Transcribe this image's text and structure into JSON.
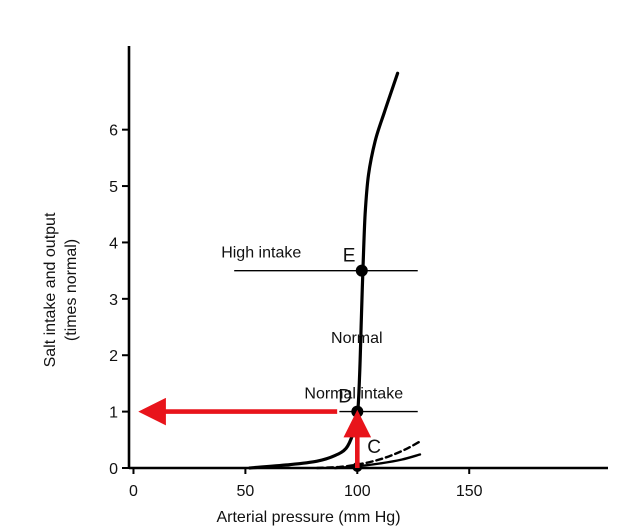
{
  "chart_data": {
    "type": "line",
    "xlabel": "Arterial pressure (mm Hg)",
    "ylabel_line1": "Salt intake and output",
    "ylabel_line2": "(times normal)",
    "xlim": [
      -2,
      212
    ],
    "ylim": [
      0,
      7.2
    ],
    "x_ticks": [
      0,
      50,
      100,
      150
    ],
    "y_ticks": [
      0,
      1,
      2,
      3,
      4,
      5,
      6
    ],
    "series": [
      {
        "name": "Normal",
        "style": "solid",
        "x": [
          52,
          70,
          82,
          90,
          95,
          98,
          99.5,
          100.3,
          101,
          101.7,
          102.5,
          103.5,
          105,
          108,
          112,
          118
        ],
        "y": [
          0,
          0.06,
          0.12,
          0.22,
          0.35,
          0.6,
          0.85,
          1.05,
          1.6,
          2.5,
          3.5,
          4.5,
          5.2,
          5.8,
          6.3,
          7.0
        ]
      },
      {
        "style": "solid",
        "x": [
          90,
          100,
          110,
          120,
          128
        ],
        "y": [
          0,
          0.03,
          0.08,
          0.15,
          0.24
        ]
      },
      {
        "style": "dashed",
        "x": [
          82,
          92,
          100,
          108,
          115,
          122,
          128
        ],
        "y": [
          0,
          0.02,
          0.06,
          0.13,
          0.22,
          0.34,
          0.47
        ]
      }
    ],
    "intake_lines": [
      {
        "label": "High intake",
        "y": 3.5,
        "x_start": 45,
        "x_end": 127,
        "point_label": "E",
        "point_x": 102
      },
      {
        "label": "Normal intake",
        "y": 1.0,
        "x_start": 92,
        "x_end": 127,
        "point_label": "D",
        "point_x": 100
      }
    ],
    "series_label": "Normal",
    "extra_point": {
      "label": "C",
      "x": 100,
      "y": 0
    },
    "arrows": [
      {
        "from": [
          100,
          0
        ],
        "to": [
          100,
          1
        ]
      },
      {
        "from": [
          91,
          1
        ],
        "to": [
          3,
          1
        ]
      }
    ],
    "colors": {
      "curve": "#000000",
      "arrow": "#e8141b",
      "axis": "#000000"
    }
  }
}
